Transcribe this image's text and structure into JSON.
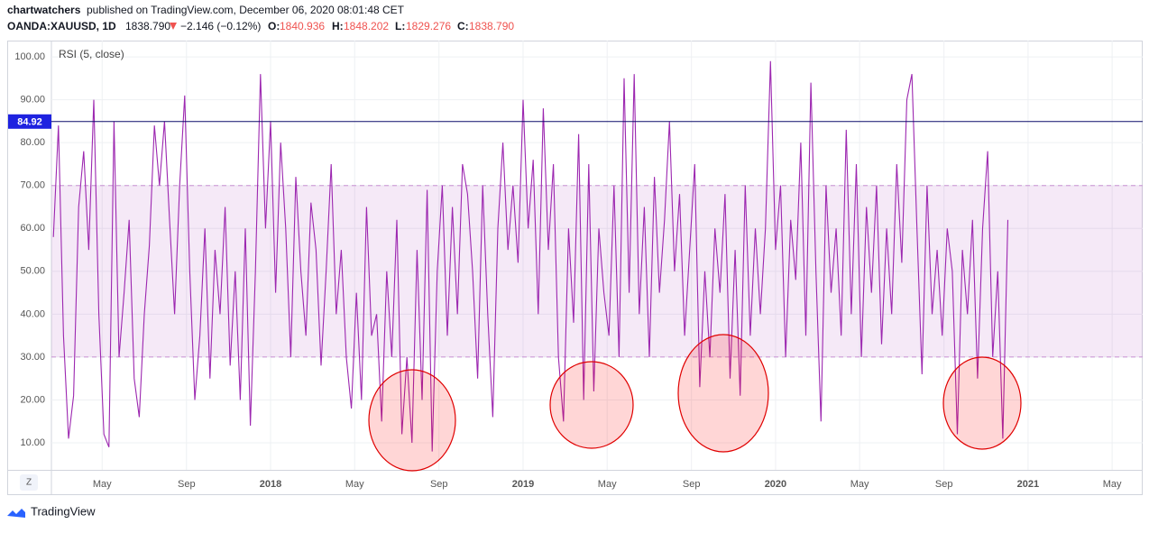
{
  "header": {
    "publisher": "chartwatchers",
    "published": "published on TradingView.com, December 06, 2020 08:01:48 CET",
    "symbol": "OANDA:XAUUSD, 1D",
    "price": "1838.790",
    "change": "−2.146 (−0.12%)",
    "o_label": "O:",
    "o": "1840.936",
    "h_label": "H:",
    "h": "1848.202",
    "l_label": "L:",
    "l": "1829.276",
    "c_label": "C:",
    "c": "1838.790"
  },
  "footer": {
    "brand": "TradingView",
    "button": "Z"
  },
  "chart_data": {
    "type": "line",
    "title": "RSI (5, close)",
    "color": "#9c27b0",
    "x": [
      2017.14,
      2017.16,
      2017.18,
      2017.2,
      2017.22,
      2017.24,
      2017.26,
      2017.28,
      2017.3,
      2017.32,
      2017.34,
      2017.36,
      2017.38,
      2017.4,
      2017.42,
      2017.44,
      2017.46,
      2017.48,
      2017.5,
      2017.52,
      2017.54,
      2017.56,
      2017.58,
      2017.6,
      2017.62,
      2017.64,
      2017.66,
      2017.68,
      2017.7,
      2017.72,
      2017.74,
      2017.76,
      2017.78,
      2017.8,
      2017.82,
      2017.84,
      2017.86,
      2017.88,
      2017.9,
      2017.92,
      2017.94,
      2017.96,
      2017.98,
      2018,
      2018.02,
      2018.04,
      2018.06,
      2018.08,
      2018.1,
      2018.12,
      2018.14,
      2018.16,
      2018.18,
      2018.2,
      2018.22,
      2018.24,
      2018.26,
      2018.28,
      2018.3,
      2018.32,
      2018.34,
      2018.36,
      2018.38,
      2018.4,
      2018.42,
      2018.44,
      2018.46,
      2018.48,
      2018.5,
      2018.52,
      2018.54,
      2018.56,
      2018.58,
      2018.6,
      2018.62,
      2018.64,
      2018.66,
      2018.68,
      2018.7,
      2018.72,
      2018.74,
      2018.76,
      2018.78,
      2018.8,
      2018.82,
      2018.84,
      2018.86,
      2018.88,
      2018.9,
      2018.92,
      2018.94,
      2018.96,
      2018.98,
      2019,
      2019.02,
      2019.04,
      2019.06,
      2019.08,
      2019.1,
      2019.12,
      2019.14,
      2019.16,
      2019.18,
      2019.2,
      2019.22,
      2019.24,
      2019.26,
      2019.28,
      2019.3,
      2019.32,
      2019.34,
      2019.36,
      2019.38,
      2019.4,
      2019.42,
      2019.44,
      2019.46,
      2019.48,
      2019.5,
      2019.52,
      2019.54,
      2019.56,
      2019.58,
      2019.6,
      2019.62,
      2019.64,
      2019.66,
      2019.68,
      2019.7,
      2019.72,
      2019.74,
      2019.76,
      2019.78,
      2019.8,
      2019.82,
      2019.84,
      2019.86,
      2019.88,
      2019.9,
      2019.92,
      2019.94,
      2019.96,
      2019.98,
      2020,
      2020.02,
      2020.04,
      2020.06,
      2020.08,
      2020.1,
      2020.12,
      2020.14,
      2020.16,
      2020.18,
      2020.2,
      2020.22,
      2020.24,
      2020.26,
      2020.28,
      2020.3,
      2020.32,
      2020.34,
      2020.36,
      2020.38,
      2020.4,
      2020.42,
      2020.44,
      2020.46,
      2020.48,
      2020.5,
      2020.52,
      2020.54,
      2020.56,
      2020.58,
      2020.6,
      2020.62,
      2020.64,
      2020.66,
      2020.68,
      2020.7,
      2020.72,
      2020.74,
      2020.76,
      2020.78,
      2020.8,
      2020.82,
      2020.84,
      2020.86,
      2020.88,
      2020.9,
      2020.92
    ],
    "values": [
      58,
      84,
      35,
      11,
      21,
      65,
      78,
      55,
      90,
      40,
      12,
      9,
      85,
      30,
      45,
      62,
      25,
      16,
      40,
      56,
      84,
      70,
      85,
      62,
      40,
      70,
      91,
      50,
      20,
      35,
      60,
      25,
      55,
      40,
      65,
      28,
      50,
      20,
      60,
      14,
      50,
      96,
      60,
      85,
      45,
      80,
      60,
      30,
      72,
      50,
      35,
      66,
      55,
      28,
      50,
      75,
      40,
      55,
      30,
      18,
      45,
      20,
      65,
      35,
      40,
      15,
      50,
      30,
      62,
      12,
      30,
      10,
      55,
      20,
      69,
      8,
      50,
      70,
      35,
      65,
      40,
      75,
      68,
      50,
      25,
      70,
      40,
      16,
      60,
      80,
      55,
      70,
      52,
      90,
      60,
      76,
      40,
      88,
      55,
      75,
      30,
      15,
      60,
      38,
      82,
      20,
      75,
      22,
      60,
      45,
      35,
      70,
      30,
      95,
      45,
      96,
      40,
      65,
      30,
      72,
      45,
      62,
      85,
      50,
      68,
      35,
      55,
      75,
      23,
      50,
      30,
      60,
      45,
      68,
      25,
      55,
      21,
      70,
      35,
      60,
      40,
      60,
      99,
      55,
      70,
      30,
      62,
      48,
      80,
      35,
      94,
      50,
      15,
      70,
      45,
      60,
      35,
      83,
      40,
      75,
      30,
      65,
      45,
      70,
      33,
      60,
      40,
      75,
      52,
      90,
      96,
      60,
      26,
      70,
      40,
      55,
      35,
      60,
      50,
      12,
      55,
      40,
      62,
      25,
      60,
      78,
      30,
      50,
      11,
      62
    ],
    "xlim": [
      2017.132,
      2021.454
    ],
    "xticks": [
      {
        "value": 2017.333,
        "label": "May"
      },
      {
        "value": 2017.667,
        "label": "Sep"
      },
      2018,
      {
        "value": 2018.333,
        "label": "May"
      },
      {
        "value": 2018.667,
        "label": "Sep"
      },
      2019,
      {
        "value": 2019.333,
        "label": "May"
      },
      {
        "value": 2019.667,
        "label": "Sep"
      },
      2020,
      {
        "value": 2020.333,
        "label": "May"
      },
      {
        "value": 2020.667,
        "label": "Sep"
      },
      2021,
      {
        "value": 2021.333,
        "label": "May"
      }
    ],
    "ylim": [
      3.7,
      103.8
    ],
    "yticks": [
      {
        "value": 10,
        "label": "10.00"
      },
      {
        "value": 20,
        "label": "20.00"
      },
      {
        "value": 30,
        "label": "30.00"
      },
      {
        "value": 40,
        "label": "40.00"
      },
      {
        "value": 50,
        "label": "50.00"
      },
      {
        "value": 60,
        "label": "60.00"
      },
      {
        "value": 70,
        "label": "70.00"
      },
      {
        "value": 80,
        "label": "80.00"
      },
      {
        "value": 90,
        "label": "90.00"
      },
      {
        "value": 100,
        "label": "100.00"
      }
    ],
    "band": [
      30,
      70
    ],
    "band_color": "#9c27b0",
    "hline": {
      "value": 84.92,
      "color": "#0d0d6b",
      "label_color": "#1e22e0"
    },
    "grid": true
  }
}
